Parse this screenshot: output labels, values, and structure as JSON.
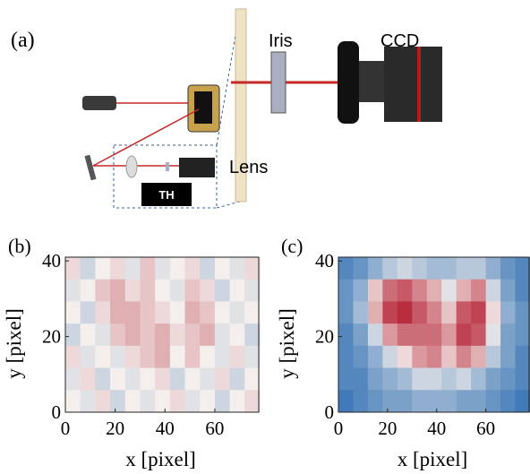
{
  "diagram": {
    "panel_label": "(a)",
    "labels": {
      "iris": "Iris",
      "ccd": "CCD",
      "lens": "Lens",
      "th": "TH"
    }
  },
  "chart_data": [
    {
      "type": "heatmap",
      "panel_label": "(b)",
      "xlabel": "x [pixel]",
      "ylabel": "y [pixel]",
      "xlim": [
        0,
        78
      ],
      "ylim": [
        0,
        41
      ],
      "xticks": [
        0,
        20,
        40,
        60
      ],
      "yticks": [
        0,
        20,
        40
      ],
      "zlim": [
        -1,
        1
      ],
      "colormap": [
        "#2c6db2",
        "#f4efec",
        "#b2182b"
      ],
      "z": [
        [
          0.1,
          -0.2,
          0,
          0.1,
          -0.1,
          0.2,
          -0.1,
          0,
          0.1,
          -0.2,
          0,
          -0.1,
          0.1
        ],
        [
          -0.1,
          0,
          0.2,
          0.3,
          0.1,
          0.2,
          0,
          -0.1,
          0.2,
          0.1,
          -0.2,
          0,
          -0.1
        ],
        [
          0,
          -0.2,
          0.1,
          0.3,
          0.3,
          0.2,
          0.1,
          0,
          0.3,
          0.2,
          0,
          -0.1,
          0
        ],
        [
          -0.2,
          0,
          -0.1,
          0.2,
          0.3,
          0.2,
          0.3,
          0.1,
          0.2,
          0.3,
          -0.1,
          0,
          -0.2
        ],
        [
          0.1,
          -0.1,
          0,
          -0.1,
          0.1,
          0.2,
          0.3,
          0,
          0.2,
          0,
          -0.1,
          0.1,
          -0.1
        ],
        [
          -0.1,
          0.1,
          -0.2,
          0,
          -0.1,
          0,
          0.1,
          -0.2,
          0,
          -0.1,
          0.1,
          -0.2,
          0
        ],
        [
          0,
          -0.1,
          0.1,
          -0.2,
          0,
          -0.1,
          0,
          0.1,
          -0.1,
          0,
          -0.2,
          0,
          0.1
        ]
      ]
    },
    {
      "type": "heatmap",
      "panel_label": "(c)",
      "xlabel": "x [pixel]",
      "ylabel": "y [pixel]",
      "xlim": [
        0,
        78
      ],
      "ylim": [
        0,
        41
      ],
      "xticks": [
        0,
        20,
        40,
        60
      ],
      "yticks": [
        0,
        20,
        40
      ],
      "zlim": [
        -1,
        1
      ],
      "colormap": [
        "#2c6db2",
        "#f4efec",
        "#b2182b"
      ],
      "z": [
        [
          -0.8,
          -0.7,
          -0.5,
          -0.3,
          -0.2,
          -0.3,
          -0.4,
          -0.4,
          -0.3,
          -0.3,
          -0.5,
          -0.7,
          -0.8
        ],
        [
          -0.7,
          -0.5,
          0.2,
          0.6,
          0.7,
          0.5,
          0.3,
          -0.1,
          0.3,
          0.5,
          -0.2,
          -0.6,
          -0.8
        ],
        [
          -0.7,
          -0.4,
          0.3,
          0.8,
          0.9,
          0.7,
          0.5,
          0.2,
          0.7,
          0.8,
          0.1,
          -0.5,
          -0.7
        ],
        [
          -0.8,
          -0.6,
          -0.2,
          0.4,
          0.6,
          0.6,
          0.6,
          0.4,
          0.8,
          0.7,
          -0.1,
          -0.6,
          -0.7
        ],
        [
          -0.8,
          -0.7,
          -0.5,
          -0.2,
          0.1,
          0.4,
          0.5,
          0.2,
          0.5,
          0.3,
          -0.3,
          -0.6,
          -0.8
        ],
        [
          -0.8,
          -0.8,
          -0.6,
          -0.5,
          -0.4,
          -0.2,
          -0.2,
          -0.3,
          -0.2,
          -0.4,
          -0.6,
          -0.7,
          -0.8
        ],
        [
          -0.9,
          -0.8,
          -0.7,
          -0.6,
          -0.6,
          -0.5,
          -0.5,
          -0.5,
          -0.6,
          -0.6,
          -0.7,
          -0.8,
          -0.9
        ]
      ]
    }
  ]
}
